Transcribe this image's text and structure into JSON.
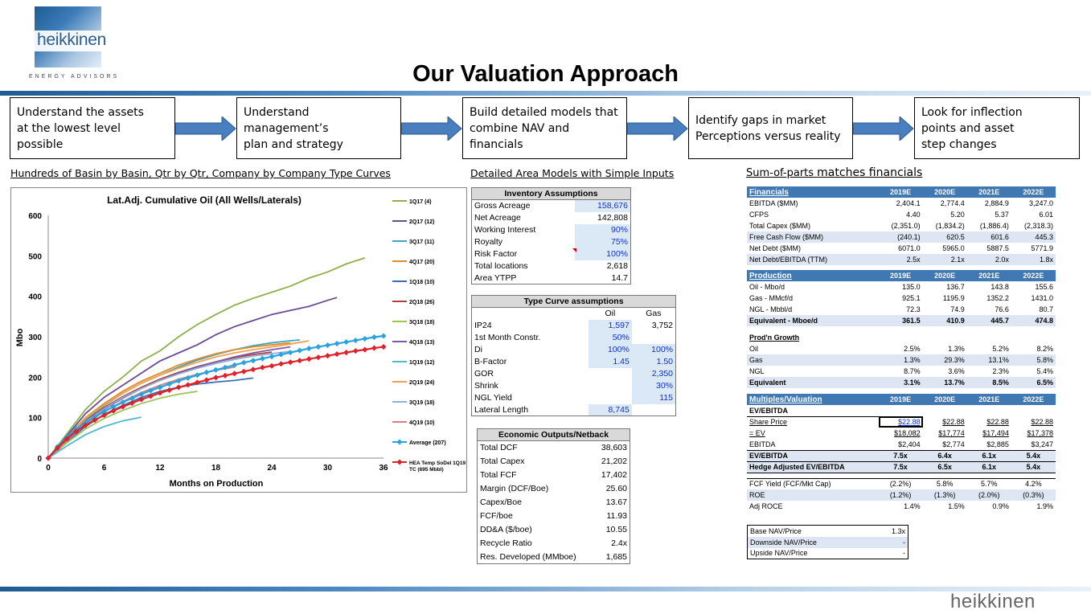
{
  "brand": {
    "name": "heikkinen",
    "tagline": "ENERGY ADVISORS"
  },
  "title": "Our Valuation Approach",
  "steps": [
    {
      "l1": "Understand the assets",
      "l2": "at the lowest level possible"
    },
    {
      "l1": "Understand management’s",
      "l2": "plan and strategy"
    },
    {
      "l1": "Build detailed models that",
      "l2": "combine NAV and financials"
    },
    {
      "l1": "Identify gaps in market",
      "l2": "Perceptions versus reality"
    },
    {
      "l1": "Look for inflection",
      "l2": "points and asset",
      "l3": "step changes"
    }
  ],
  "sections": {
    "left": "Hundreds of Basin by Basin, Qtr by Qtr, Company by Company Type Curves",
    "mid": "Detailed Area Models with Simple Inputs",
    "right_a": "Sum-of-parts ",
    "right_b": "matches financials"
  },
  "inventory": {
    "title": "Inventory Assumptions",
    "rows": [
      {
        "k": "Gross Acreage",
        "v": "158,676"
      },
      {
        "k": "Net Acreage",
        "v": "142,808"
      },
      {
        "k": "Working Interest",
        "v": "90%"
      },
      {
        "k": "Royalty",
        "v": "75%"
      },
      {
        "k": "Risk Factor",
        "v": "100%"
      },
      {
        "k": "Total locations",
        "v": "2,618"
      },
      {
        "k": "Area YTPP",
        "v": "14.7"
      }
    ]
  },
  "typecurve": {
    "title": "Type Curve assumptions",
    "h_oil": "Oil",
    "h_gas": "Gas",
    "rows": [
      {
        "k": "IP24",
        "oil": "1,597",
        "gas": "3,752"
      },
      {
        "k": "1st Month Constr.",
        "oil": "50%",
        "gas": ""
      },
      {
        "k": "Di",
        "oil": "100%",
        "gas": "100%"
      },
      {
        "k": "B-Factor",
        "oil": "1.45",
        "gas": "1.50"
      },
      {
        "k": "GOR",
        "oil": "",
        "gas": "2,350"
      },
      {
        "k": "Shrink",
        "oil": "",
        "gas": "30%"
      },
      {
        "k": "NGL Yield",
        "oil": "",
        "gas": "115"
      },
      {
        "k": "Lateral Length",
        "oil": "8,745",
        "gas": ""
      }
    ]
  },
  "econ": {
    "title": "Economic Outputs/Netback",
    "rows": [
      {
        "k": "Total DCF",
        "v": "38,603"
      },
      {
        "k": "Total Capex",
        "v": "21,202"
      },
      {
        "k": "Total FCF",
        "v": "17,402"
      },
      {
        "k": "Margin (DCF/Boe)",
        "v": "25.60"
      },
      {
        "k": "Capex/Boe",
        "v": "13.67"
      },
      {
        "k": "FCF/boe",
        "v": "11.93"
      },
      {
        "k": "DD&A ($/boe)",
        "v": "10.55"
      },
      {
        "k": "Recycle Ratio",
        "v": "2.4x"
      },
      {
        "k": "Res. Developed (MMboe)",
        "v": "1,685"
      }
    ]
  },
  "financials": {
    "years": [
      "2019E",
      "2020E",
      "2021E",
      "2022E"
    ],
    "fin_title": "Financials",
    "fin_rows": [
      {
        "k": "EBITDA ($MM)",
        "v": [
          "2,404.1",
          "2,774.4",
          "2,884.9",
          "3,247.0"
        ]
      },
      {
        "k": "CFPS",
        "v": [
          "4.40",
          "5.20",
          "5.37",
          "6.01"
        ]
      },
      {
        "k": "Total Capex ($MM)",
        "v": [
          "(2,351.0)",
          "(1,834.2)",
          "(1,886.4)",
          "(2,318.3)"
        ]
      },
      {
        "k": "Free Cash Flow ($MM)",
        "v": [
          "(240.1)",
          "620.5",
          "601.6",
          "445.3"
        ]
      },
      {
        "k": "Net Debt ($MM)",
        "v": [
          "6071.0",
          "5965.0",
          "5887.5",
          "5771.9"
        ]
      },
      {
        "k": "Net Debt/EBITDA (TTM)",
        "v": [
          "2.5x",
          "2.1x",
          "2.0x",
          "1.8x"
        ]
      }
    ],
    "prod_title": "Production",
    "prod_rows": [
      {
        "k": "Oil - Mbo/d",
        "v": [
          "135.0",
          "136.7",
          "143.8",
          "155.6"
        ]
      },
      {
        "k": "Gas - MMcf/d",
        "v": [
          "925.1",
          "1195.9",
          "1352.2",
          "1431.0"
        ]
      },
      {
        "k": "NGL - Mbbl/d",
        "v": [
          "72.3",
          "74.9",
          "76.6",
          "80.7"
        ]
      },
      {
        "k": "Equivalent - Mboe/d",
        "v": [
          "361.5",
          "410.9",
          "445.7",
          "474.8"
        ]
      }
    ],
    "growth_title": "Prod'n Growth",
    "growth_rows": [
      {
        "k": "Oil",
        "v": [
          "2.5%",
          "1.3%",
          "5.2%",
          "8.2%"
        ]
      },
      {
        "k": "Gas",
        "v": [
          "1.3%",
          "29.3%",
          "13.1%",
          "5.8%"
        ]
      },
      {
        "k": "NGL",
        "v": [
          "8.7%",
          "3.6%",
          "2.3%",
          "5.4%"
        ]
      },
      {
        "k": "Equivalent",
        "v": [
          "3.1%",
          "13.7%",
          "8.5%",
          "6.5%"
        ]
      }
    ],
    "mult_title": "Multiples/Valuation",
    "mult_sub": "EV/EBITDA",
    "mult_rows": [
      {
        "k": "Share Price",
        "v": [
          "$22.88",
          "$22.88",
          "$22.88",
          "$22.88"
        ]
      },
      {
        "k": "= EV",
        "v": [
          "$18,082",
          "$17,774",
          "$17,494",
          "$17,378"
        ]
      },
      {
        "k": "EBITDA",
        "v": [
          "$2,404",
          "$2,774",
          "$2,885",
          "$3,247"
        ]
      },
      {
        "k": "EV/EBITDA",
        "v": [
          "7.5x",
          "6.4x",
          "6.1x",
          "5.4x"
        ]
      },
      {
        "k": "Hedge Adjusted EV/EBITDA",
        "v": [
          "7.5x",
          "6.5x",
          "6.1x",
          "5.4x"
        ]
      }
    ],
    "yield_rows": [
      {
        "k": "FCF Yield (FCF/Mkt Cap)",
        "v": [
          "(2.2%)",
          "5.8%",
          "5.7%",
          "4.2%"
        ]
      },
      {
        "k": "ROE",
        "v": [
          "(1.2%)",
          "(1.3%)",
          "(2.0%)",
          "(0.3%)"
        ]
      },
      {
        "k": "Adj ROCE",
        "v": [
          "1.4%",
          "1.5%",
          "0.9%",
          "1.9%"
        ]
      }
    ],
    "nav_rows": [
      {
        "k": "Base NAV/Price",
        "v": "1.3x"
      },
      {
        "k": "Downside NAV/Price",
        "v": "-"
      },
      {
        "k": "Upside NAV/Price",
        "v": "-"
      }
    ]
  },
  "chart_data": {
    "type": "line",
    "title": "Lat.Adj. Cumulative Oil (All Wells/Laterals)",
    "xlabel": "Months on Production",
    "ylabel": "Mbo",
    "xlim": [
      0,
      36
    ],
    "ylim": [
      0,
      600
    ],
    "xticks": [
      0,
      6,
      12,
      18,
      24,
      30,
      36
    ],
    "yticks": [
      0,
      100,
      200,
      300,
      400,
      500,
      600
    ],
    "legend_position": "right",
    "series": [
      {
        "name": "1Q17 (4)",
        "color": "#8db04a",
        "x": [
          0,
          2,
          4,
          6,
          8,
          10,
          12,
          14,
          16,
          18,
          20,
          22,
          24,
          26,
          28,
          30,
          32,
          34
        ],
        "y": [
          0,
          60,
          120,
          165,
          200,
          240,
          265,
          300,
          330,
          355,
          378,
          395,
          410,
          425,
          445,
          460,
          480,
          495
        ],
        "marker": false
      },
      {
        "name": "2Q17 (12)",
        "color": "#6a4a96",
        "x": [
          0,
          2,
          4,
          6,
          8,
          10,
          12,
          14,
          16,
          18,
          20,
          22,
          24,
          26,
          28,
          30,
          31
        ],
        "y": [
          0,
          55,
          110,
          150,
          180,
          210,
          240,
          260,
          280,
          305,
          325,
          340,
          355,
          365,
          375,
          390,
          397
        ],
        "marker": false
      },
      {
        "name": "3Q17 (11)",
        "color": "#3aa6c0",
        "x": [
          0,
          2,
          4,
          6,
          8,
          10,
          12,
          14,
          16,
          18,
          20,
          22,
          24,
          26,
          27
        ],
        "y": [
          0,
          50,
          95,
          130,
          160,
          185,
          205,
          225,
          242,
          256,
          268,
          278,
          285,
          290,
          292
        ],
        "marker": false
      },
      {
        "name": "4Q17 (20)",
        "color": "#e08a2a",
        "x": [
          0,
          2,
          4,
          6,
          8,
          10,
          12,
          14,
          16,
          18,
          20,
          22,
          24,
          26
        ],
        "y": [
          0,
          52,
          100,
          135,
          165,
          190,
          210,
          230,
          245,
          258,
          268,
          275,
          280,
          285
        ],
        "marker": false
      },
      {
        "name": "1Q18 (10)",
        "color": "#3b6fb3",
        "x": [
          0,
          2,
          4,
          6,
          8,
          10,
          12,
          14,
          16,
          18,
          20,
          22
        ],
        "y": [
          0,
          40,
          78,
          108,
          130,
          150,
          165,
          175,
          183,
          188,
          192,
          198
        ],
        "marker": false
      },
      {
        "name": "2Q18 (26)",
        "color": "#b04040",
        "x": [
          0,
          2,
          4,
          6,
          8,
          10,
          12,
          14,
          16,
          18,
          20,
          22,
          24
        ],
        "y": [
          0,
          48,
          92,
          125,
          152,
          175,
          195,
          212,
          226,
          238,
          248,
          256,
          262
        ],
        "marker": false
      },
      {
        "name": "3Q18 (18)",
        "color": "#9dc35a",
        "x": [
          0,
          2,
          4,
          6,
          8,
          10,
          12,
          14,
          16
        ],
        "y": [
          0,
          38,
          72,
          98,
          118,
          135,
          148,
          158,
          165
        ],
        "marker": false
      },
      {
        "name": "4Q18 (13)",
        "color": "#7d5aa6",
        "x": [
          0,
          2,
          4,
          6,
          8,
          10,
          12,
          14,
          16,
          18,
          20,
          22,
          24,
          26
        ],
        "y": [
          0,
          45,
          88,
          120,
          148,
          172,
          192,
          210,
          225,
          238,
          250,
          260,
          268,
          275
        ],
        "marker": false
      },
      {
        "name": "1Q19 (12)",
        "color": "#4fb8d0",
        "x": [
          0,
          2,
          4,
          6,
          8,
          10
        ],
        "y": [
          0,
          30,
          58,
          78,
          92,
          101
        ],
        "marker": false
      },
      {
        "name": "2Q19 (24)",
        "color": "#f0a050",
        "x": [
          0,
          2,
          4,
          6,
          8,
          10,
          12,
          14,
          16,
          18,
          20,
          22,
          24,
          26,
          28
        ],
        "y": [
          0,
          50,
          98,
          132,
          160,
          185,
          205,
          222,
          237,
          250,
          260,
          268,
          275,
          282,
          290
        ],
        "marker": false
      },
      {
        "name": "3Q19 (18)",
        "color": "#8fb0d8",
        "x": [
          0,
          2,
          4,
          6,
          8,
          10,
          12,
          14,
          16,
          18,
          20,
          22,
          24,
          26
        ],
        "y": [
          0,
          46,
          90,
          122,
          150,
          172,
          192,
          208,
          222,
          234,
          244,
          252,
          258,
          264
        ],
        "marker": false
      },
      {
        "name": "4Q19 (10)",
        "color": "#d08080",
        "x": [
          0,
          2,
          4,
          6,
          8,
          10,
          12,
          14,
          16,
          18,
          20
        ],
        "y": [
          0,
          44,
          85,
          115,
          140,
          162,
          180,
          195,
          207,
          217,
          225
        ],
        "marker": false
      },
      {
        "name": "Average (207)",
        "color": "#29a3e0",
        "x": [
          0,
          1,
          2,
          3,
          4,
          5,
          6,
          7,
          8,
          9,
          10,
          11,
          12,
          13,
          14,
          15,
          16,
          17,
          18,
          19,
          20,
          21,
          22,
          23,
          24,
          25,
          26,
          27,
          28,
          29,
          30,
          31,
          32,
          33,
          34,
          35,
          36
        ],
        "y": [
          0,
          28,
          52,
          72,
          88,
          102,
          115,
          127,
          138,
          148,
          158,
          167,
          175,
          183,
          191,
          198,
          205,
          212,
          218,
          224,
          230,
          236,
          241,
          246,
          251,
          256,
          261,
          266,
          271,
          275,
          279,
          283,
          287,
          291,
          295,
          299,
          302
        ],
        "marker": true
      },
      {
        "name": "HEA Temp SoDel 1Q19 TC (695 Mbbl)",
        "color": "#e0202a",
        "x": [
          0,
          1,
          2,
          3,
          4,
          5,
          6,
          7,
          8,
          9,
          10,
          11,
          12,
          13,
          14,
          15,
          16,
          17,
          18,
          19,
          20,
          21,
          22,
          23,
          24,
          25,
          26,
          27,
          28,
          29,
          30,
          31,
          32,
          33,
          34,
          35,
          36
        ],
        "y": [
          0,
          25,
          48,
          66,
          81,
          94,
          106,
          117,
          127,
          136,
          145,
          153,
          161,
          168,
          175,
          181,
          187,
          193,
          199,
          204,
          209,
          214,
          219,
          224,
          228,
          233,
          237,
          241,
          245,
          249,
          253,
          257,
          261,
          265,
          268,
          272,
          275
        ],
        "marker": true
      }
    ]
  }
}
